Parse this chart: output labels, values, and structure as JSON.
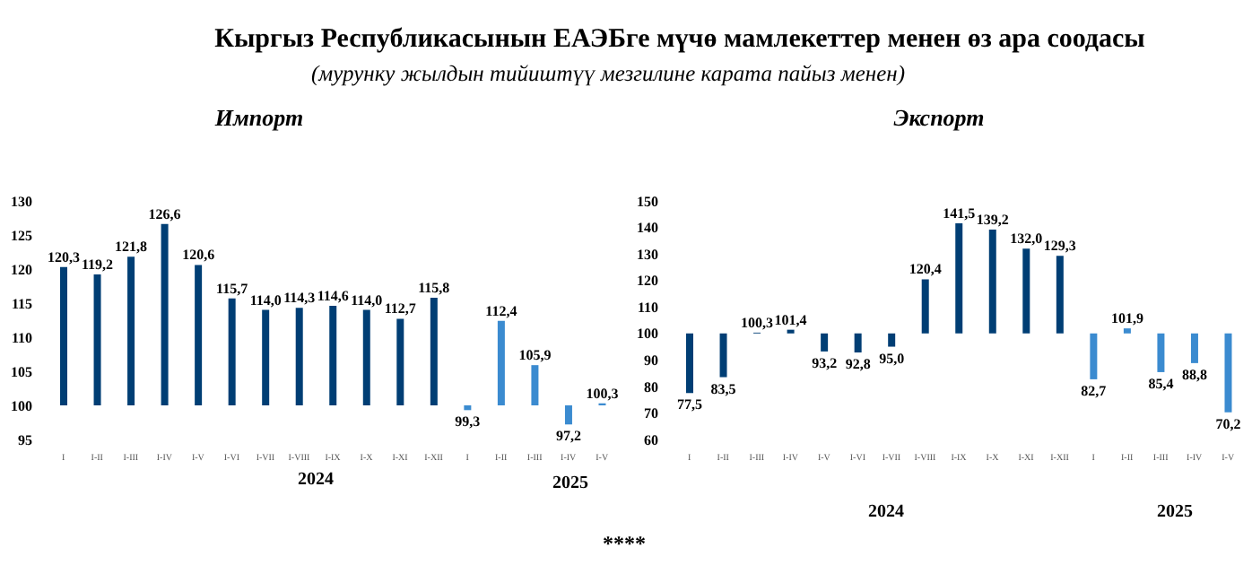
{
  "chart_data": [
    {
      "type": "bar",
      "title": "Импорт",
      "annotations": [
        "Кыргыз Республикасынын ЕАЭБге мүчө мамлекеттер менен өз ара соодасы",
        "(мурунку жылдын тийиштүү мезгилине карата пайыз менен)",
        "2024",
        "2025"
      ],
      "categories": [
        "I",
        "I-II",
        "I-III",
        "I-IV",
        "I-V",
        "I-VI",
        "I-VII",
        "I-VIII",
        "I-IX",
        "I-X",
        "I-XI",
        "I-XII",
        "I",
        "I-II",
        "I-III",
        "I-IV",
        "I-V"
      ],
      "base": [
        100,
        100,
        100,
        100,
        100,
        100,
        100,
        100,
        100,
        100,
        100,
        100,
        100,
        100,
        100,
        100,
        100
      ],
      "values": [
        20.3,
        19.2,
        21.8,
        26.6,
        20.6,
        15.7,
        14.0,
        14.3,
        14.6,
        14.0,
        12.7,
        15.8,
        -0.7,
        12.4,
        5.9,
        -2.8,
        0.3
      ],
      "value_labels": [
        "120,3",
        "119,2",
        "121,8",
        "126,6",
        "120,6",
        "115,7",
        "114,0",
        "114,3",
        "114,6",
        "114,0",
        "112,7",
        "115,8",
        "99,3",
        "112,4",
        "105,9",
        "97,2",
        "100,3"
      ],
      "colors": [
        "#003e74",
        "#003e74",
        "#003e74",
        "#003e74",
        "#003e74",
        "#003e74",
        "#003e74",
        "#003e74",
        "#003e74",
        "#003e74",
        "#003e74",
        "#003e74",
        "#3b8bd0",
        "#3b8bd0",
        "#3b8bd0",
        "#3b8bd0",
        "#3b8bd0"
      ],
      "ylim": [
        95,
        130
      ],
      "yticks": [
        95,
        100,
        105,
        110,
        115,
        120,
        125,
        130
      ],
      "grid": false,
      "legend": false
    },
    {
      "type": "bar",
      "title": "Экспорт",
      "annotations": [
        "2024",
        "2025",
        "****"
      ],
      "categories": [
        "I",
        "I-II",
        "I-III",
        "I-IV",
        "I-V",
        "I-VI",
        "I-VII",
        "I-VIII",
        "I-IX",
        "I-X",
        "I-XI",
        "I-XII",
        "I",
        "I-II",
        "I-III",
        "I-IV",
        "I-V"
      ],
      "base": [
        100,
        100,
        100,
        100,
        100,
        100,
        100,
        100,
        100,
        100,
        100,
        100,
        100,
        100,
        100,
        100,
        100
      ],
      "values": [
        -22.5,
        -16.5,
        0.3,
        1.4,
        -6.8,
        -7.2,
        -5.0,
        20.4,
        41.5,
        39.2,
        32.0,
        29.3,
        -17.3,
        1.9,
        -14.6,
        -11.2,
        -29.8
      ],
      "value_labels": [
        "77,5",
        "83,5",
        "100,3",
        "101,4",
        "93,2",
        "92,8",
        "95,0",
        "120,4",
        "141,5",
        "139,2",
        "132,0",
        "129,3",
        "82,7",
        "101,9",
        "85,4",
        "88,8",
        "70,2"
      ],
      "colors": [
        "#003e74",
        "#003e74",
        "#003e74",
        "#003e74",
        "#003e74",
        "#003e74",
        "#003e74",
        "#003e74",
        "#003e74",
        "#003e74",
        "#003e74",
        "#003e74",
        "#3b8bd0",
        "#3b8bd0",
        "#3b8bd0",
        "#3b8bd0",
        "#3b8bd0"
      ],
      "ylim": [
        60,
        150
      ],
      "yticks": [
        60,
        70,
        80,
        90,
        100,
        110,
        120,
        130,
        140,
        150
      ],
      "grid": false,
      "legend": false
    }
  ]
}
